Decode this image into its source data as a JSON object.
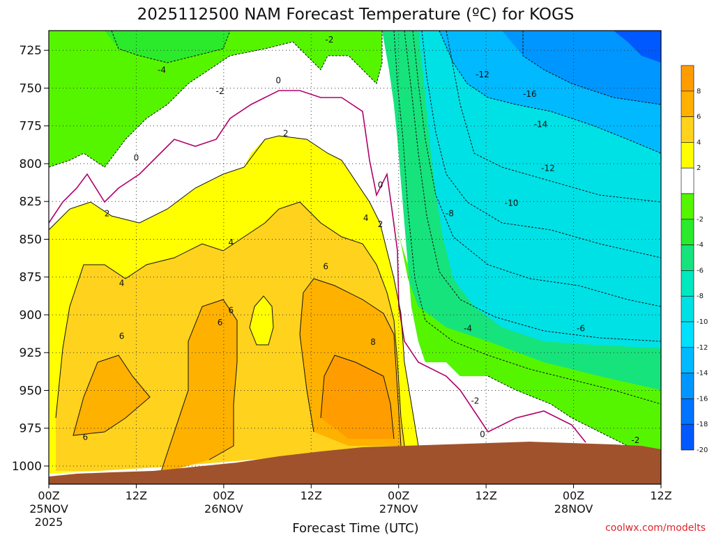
{
  "chart_data": {
    "type": "heatmap",
    "title": "2025112500 NAM Forecast Temperature (ºC) for KOGS",
    "xlabel": "Forecast Time (UTC)",
    "ylabel": "",
    "credit": "coolwx.com/modelts",
    "x_range_hours": [
      0,
      84
    ],
    "y_range_hPa": [
      1012,
      712
    ],
    "y_scale": "pressure, decreasing upward",
    "grid": true,
    "y_ticks": [
      725,
      750,
      775,
      800,
      825,
      850,
      875,
      900,
      925,
      950,
      975,
      1000
    ],
    "x_ticks": [
      {
        "hour": 0,
        "label": "00Z",
        "sub": "25NOV",
        "sub2": "2025"
      },
      {
        "hour": 12,
        "label": "12Z",
        "sub": "",
        "sub2": ""
      },
      {
        "hour": 24,
        "label": "00Z",
        "sub": "26NOV",
        "sub2": ""
      },
      {
        "hour": 36,
        "label": "12Z",
        "sub": "",
        "sub2": ""
      },
      {
        "hour": 48,
        "label": "00Z",
        "sub": "27NOV",
        "sub2": ""
      },
      {
        "hour": 60,
        "label": "12Z",
        "sub": "",
        "sub2": ""
      },
      {
        "hour": 72,
        "label": "00Z",
        "sub": "28NOV",
        "sub2": ""
      },
      {
        "hour": 84,
        "label": "12Z",
        "sub": "",
        "sub2": ""
      }
    ],
    "colorbar": {
      "labels": [
        "8",
        "6",
        "4",
        "2",
        "-2",
        "-4",
        "-6",
        "-8",
        "-10",
        "-12",
        "-14",
        "-16",
        "-18",
        "-20"
      ],
      "bins": [
        {
          "lo": 8,
          "hi": 10,
          "color": "#ff9d00"
        },
        {
          "lo": 6,
          "hi": 8,
          "color": "#ffb100"
        },
        {
          "lo": 4,
          "hi": 6,
          "color": "#ffd21e"
        },
        {
          "lo": 2,
          "hi": 4,
          "color": "#ffff00"
        },
        {
          "lo": -2,
          "hi": 2,
          "color": "#ffffff"
        },
        {
          "lo": -4,
          "hi": -2,
          "color": "#55f500"
        },
        {
          "lo": -6,
          "hi": -4,
          "color": "#2bea2b"
        },
        {
          "lo": -8,
          "hi": -6,
          "color": "#16e37c"
        },
        {
          "lo": -10,
          "hi": -8,
          "color": "#00e8c0"
        },
        {
          "lo": -12,
          "hi": -10,
          "color": "#00e1e6"
        },
        {
          "lo": -14,
          "hi": -12,
          "color": "#00e0ff"
        },
        {
          "lo": -16,
          "hi": -14,
          "color": "#00b9ff"
        },
        {
          "lo": -18,
          "hi": -16,
          "color": "#0096ff"
        },
        {
          "lo": -20,
          "hi": -18,
          "color": "#0074ff"
        },
        {
          "lo": -22,
          "hi": -20,
          "color": "#0059ff"
        }
      ]
    },
    "contour_labels": [
      {
        "text": "-2",
        "hour": 38.5,
        "p": 718
      },
      {
        "text": "-4",
        "hour": 15.5,
        "p": 738
      },
      {
        "text": "-2",
        "hour": 23.5,
        "p": 752
      },
      {
        "text": "0",
        "hour": 31.5,
        "p": 745
      },
      {
        "text": "2",
        "hour": 32.5,
        "p": 780
      },
      {
        "text": "0",
        "hour": 12.0,
        "p": 796
      },
      {
        "text": "2",
        "hour": 8.0,
        "p": 833
      },
      {
        "text": "4",
        "hour": 25.0,
        "p": 852
      },
      {
        "text": "4",
        "hour": 10.0,
        "p": 879
      },
      {
        "text": "6",
        "hour": 25.0,
        "p": 897
      },
      {
        "text": "6",
        "hour": 23.5,
        "p": 905
      },
      {
        "text": "6",
        "hour": 10.0,
        "p": 914
      },
      {
        "text": "6",
        "hour": 38.0,
        "p": 868
      },
      {
        "text": "4",
        "hour": 43.5,
        "p": 836
      },
      {
        "text": "2",
        "hour": 45.5,
        "p": 840
      },
      {
        "text": "0",
        "hour": 45.5,
        "p": 814
      },
      {
        "text": "8",
        "hour": 44.5,
        "p": 918
      },
      {
        "text": "6",
        "hour": 5.0,
        "p": 981
      },
      {
        "text": "-2",
        "hour": 58.5,
        "p": 957
      },
      {
        "text": "0",
        "hour": 59.5,
        "p": 979
      },
      {
        "text": "-2",
        "hour": 80.5,
        "p": 983
      },
      {
        "text": "-12",
        "hour": 59.5,
        "p": 741
      },
      {
        "text": "-16",
        "hour": 66.0,
        "p": 754
      },
      {
        "text": "-14",
        "hour": 67.5,
        "p": 774
      },
      {
        "text": "-12",
        "hour": 68.5,
        "p": 803
      },
      {
        "text": "-10",
        "hour": 63.5,
        "p": 826
      },
      {
        "text": "-8",
        "hour": 55.0,
        "p": 833
      },
      {
        "text": "-4",
        "hour": 57.5,
        "p": 909
      },
      {
        "text": "-6",
        "hour": 73.0,
        "p": 909
      }
    ]
  }
}
